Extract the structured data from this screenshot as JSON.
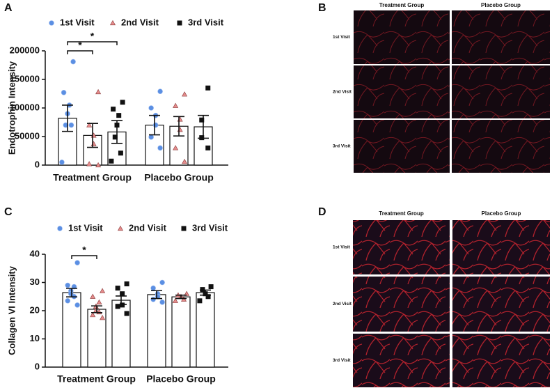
{
  "chart_data": [
    {
      "type": "bar",
      "panel_label": "A",
      "y_label": "Endotrophin Intensity",
      "categories": [
        "Treatment Group",
        "Placebo Group"
      ],
      "series": [
        {
          "name": "1st Visit",
          "color": "#5b8fe3",
          "marker": "circle",
          "values": [
            82000,
            70000
          ],
          "errors": [
            23000,
            17000
          ],
          "points": [
            [
              181000,
              127000,
              105000,
              90000,
              70000,
              70000,
              5000
            ],
            [
              129000,
              100000,
              87000,
              70000,
              49000,
              30000
            ]
          ]
        },
        {
          "name": "2nd Visit",
          "color": "#e58c8c",
          "marker": "triangle",
          "values": [
            52000,
            68000
          ],
          "errors": [
            21000,
            17000
          ],
          "points": [
            [
              128000,
              70000,
              52000,
              37000,
              2000,
              0
            ],
            [
              124000,
              104000,
              80000,
              62000,
              30000,
              6000
            ]
          ]
        },
        {
          "name": "3rd Visit",
          "color": "#111111",
          "marker": "square",
          "values": [
            58000,
            67000
          ],
          "errors": [
            20000,
            20000
          ],
          "points": [
            [
              110000,
              98000,
              87000,
              70000,
              49000,
              21000,
              7000
            ],
            [
              135000,
              79000,
              48000,
              30000
            ]
          ]
        }
      ],
      "ylim": [
        0,
        200000
      ],
      "yticks": [
        0,
        50000,
        100000,
        150000,
        200000
      ],
      "annotations": [
        "*",
        "*"
      ]
    },
    {
      "type": "bar",
      "panel_label": "C",
      "y_label": "Collagen VI Intensity",
      "categories": [
        "Treatment Group",
        "Placebo Group"
      ],
      "series": [
        {
          "name": "1st Visit",
          "color": "#5b8fe3",
          "marker": "circle",
          "values": [
            26.4,
            25.7
          ],
          "errors": [
            1.5,
            1.4
          ],
          "points": [
            [
              37,
              29,
              28.5,
              27,
              26,
              25,
              23.5,
              22
            ],
            [
              30,
              28,
              26,
              25,
              24,
              23
            ]
          ]
        },
        {
          "name": "2nd Visit",
          "color": "#e58c8c",
          "marker": "triangle",
          "values": [
            20.5,
            24.9
          ],
          "errors": [
            1.2,
            0.6
          ],
          "points": [
            [
              27,
              25,
              23,
              21.5,
              20,
              19.5,
              18.5,
              17.5
            ],
            [
              26,
              25.5,
              25,
              24,
              23.5
            ]
          ]
        },
        {
          "name": "3rd Visit",
          "color": "#111111",
          "marker": "square",
          "values": [
            23.7,
            26.4
          ],
          "errors": [
            1.5,
            0.9
          ],
          "points": [
            [
              29.5,
              28,
              26,
              22,
              21.5,
              19
            ],
            [
              28.5,
              27.5,
              26,
              25,
              23.5
            ]
          ]
        }
      ],
      "ylim": [
        0,
        40
      ],
      "yticks": [
        0,
        10,
        20,
        30,
        40
      ],
      "annotations": [
        "*"
      ]
    }
  ],
  "image_panels": [
    {
      "letter": "B",
      "column_headers": [
        "Treatment Group",
        "Placebo Group"
      ],
      "row_labels": [
        "1st Visit",
        "2nd Visit",
        "3rd Visit"
      ]
    },
    {
      "letter": "D",
      "column_headers": [
        "Treatment Group",
        "Placebo Group"
      ],
      "row_labels": [
        "1st Visit",
        "2nd Visit",
        "3rd Visit"
      ]
    }
  ]
}
